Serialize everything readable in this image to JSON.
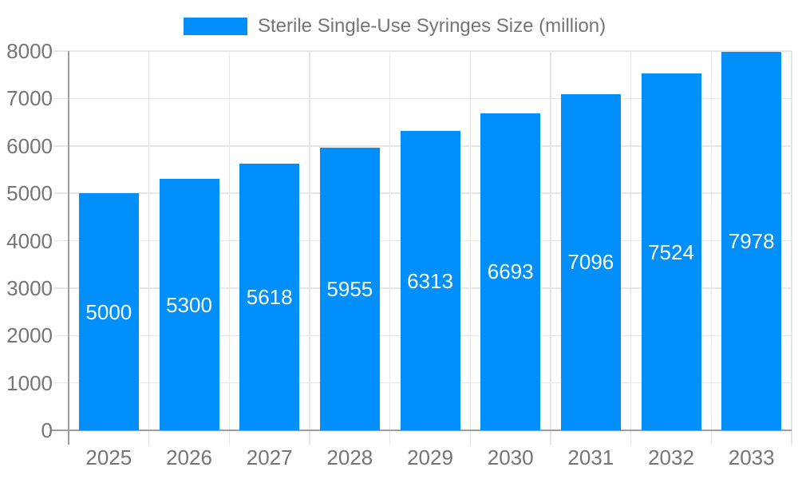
{
  "chart": {
    "colors": {
      "bar": "#008FFB",
      "grid": "#e6e6e6",
      "axis": "#9e9e9e",
      "text": "#757575",
      "value_label": "#ffffff",
      "background": "#ffffff"
    }
  },
  "chart_data": {
    "type": "bar",
    "title": "Sterile Single-Use Syringes Size (million)",
    "categories": [
      "2025",
      "2026",
      "2027",
      "2028",
      "2029",
      "2030",
      "2031",
      "2032",
      "2033"
    ],
    "values": [
      5000,
      5300,
      5618,
      5955,
      6313,
      6693,
      7096,
      7524,
      7978
    ],
    "xlabel": "",
    "ylabel": "",
    "ylim": [
      0,
      8000
    ],
    "ytick_step": 1000,
    "grid": true,
    "legend_position": "top",
    "value_labels": "inside-center"
  }
}
